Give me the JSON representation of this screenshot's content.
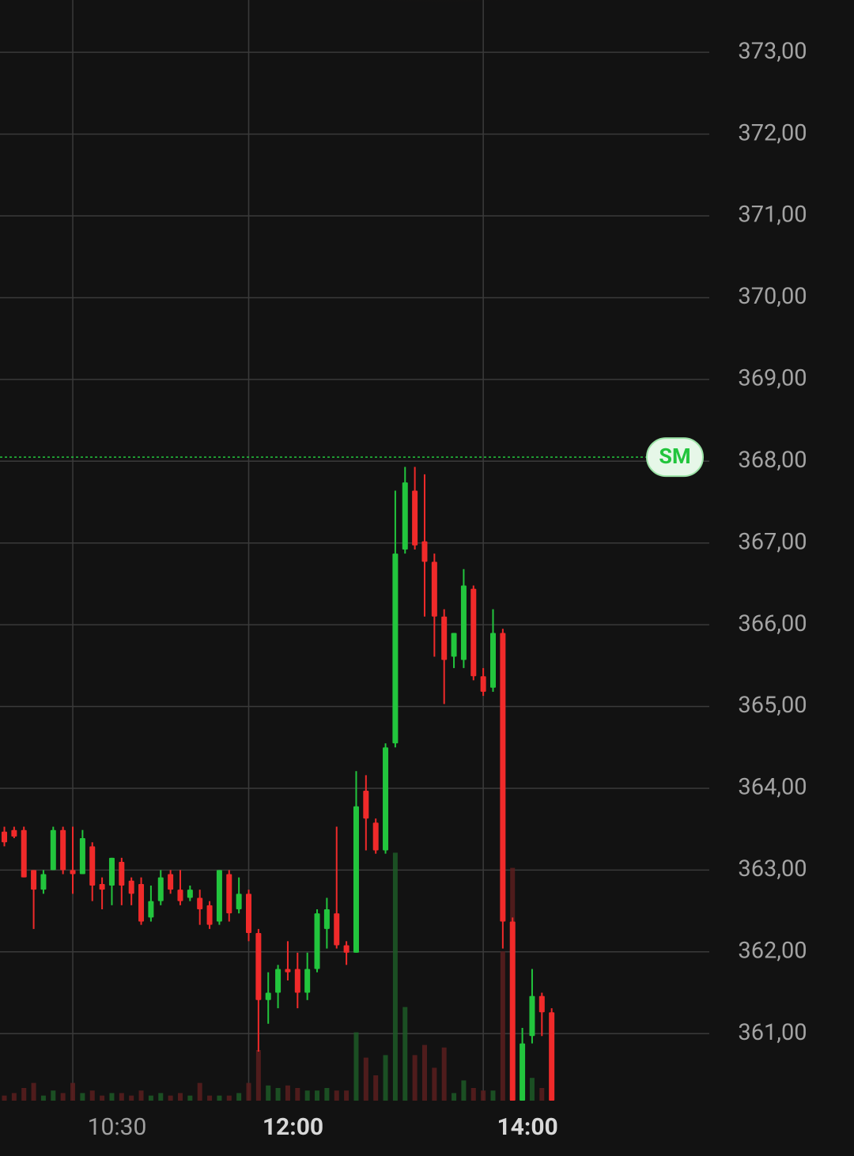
{
  "chart_data": {
    "type": "candlestick",
    "up_color": "#22c53d",
    "down_color": "#f02a2a",
    "ylim": [
      360.18,
      373.64
    ],
    "yticks": [
      {
        "value": 373,
        "label": "373,00"
      },
      {
        "value": 372,
        "label": "372,00"
      },
      {
        "value": 371,
        "label": "371,00"
      },
      {
        "value": 370,
        "label": "370,00"
      },
      {
        "value": 369,
        "label": "369,00"
      },
      {
        "value": 368,
        "label": "368,00"
      },
      {
        "value": 367,
        "label": "367,00"
      },
      {
        "value": 366,
        "label": "366,00"
      },
      {
        "value": 365,
        "label": "365,00"
      },
      {
        "value": 364,
        "label": "364,00"
      },
      {
        "value": 363,
        "label": "363,00"
      },
      {
        "value": 362,
        "label": "362,00"
      },
      {
        "value": 361,
        "label": "361,00"
      }
    ],
    "xticks": [
      {
        "value": 7,
        "label": "10:30",
        "bold": false
      },
      {
        "value": 25,
        "label": "12:00",
        "bold": true
      },
      {
        "value": 49,
        "label": "14:00",
        "bold": true
      }
    ],
    "grid": true,
    "volume_lim": [
      0,
      100
    ],
    "price_line": {
      "value": 368.05,
      "label": "SM",
      "color": "#22c53d"
    },
    "open": [
      363.47,
      363.49,
      363.49,
      363.0,
      362.76,
      363.0,
      363.49,
      363.0,
      362.95,
      363.29,
      362.83,
      362.81,
      363.1,
      362.87,
      362.83,
      362.42,
      362.62,
      362.95,
      362.76,
      362.66,
      362.66,
      362.57,
      362.37,
      362.95,
      362.52,
      362.71,
      362.23,
      361.41,
      361.5,
      361.79,
      361.79,
      361.5,
      361.79,
      362.28,
      362.47,
      362.08,
      361.99,
      363.97,
      363.58,
      363.24,
      364.55,
      366.92,
      367.64,
      367.02,
      366.77,
      366.1,
      365.61,
      365.57,
      366.44,
      365.37,
      365.23,
      365.9,
      362.37,
      360.18,
      360.97,
      361.46,
      361.26
    ],
    "high": [
      363.53,
      363.53,
      363.53,
      363.0,
      363.0,
      363.53,
      363.53,
      363.53,
      363.49,
      363.34,
      362.91,
      363.15,
      363.15,
      362.91,
      362.91,
      362.81,
      363.0,
      363.0,
      363.0,
      362.81,
      362.76,
      362.62,
      363.0,
      363.0,
      362.91,
      362.76,
      362.28,
      361.75,
      361.84,
      362.13,
      361.99,
      361.99,
      362.52,
      362.66,
      363.53,
      362.13,
      364.21,
      364.16,
      363.63,
      364.55,
      367.64,
      367.93,
      367.93,
      367.84,
      366.87,
      366.19,
      365.9,
      366.68,
      366.48,
      365.47,
      366.19,
      365.95,
      362.42,
      361.07,
      361.79,
      361.5,
      361.31
    ],
    "low": [
      363.29,
      363.39,
      362.91,
      362.28,
      362.71,
      363.0,
      362.95,
      362.71,
      362.95,
      362.62,
      362.52,
      362.57,
      362.57,
      362.57,
      362.33,
      362.37,
      362.57,
      362.71,
      362.57,
      362.62,
      362.33,
      362.28,
      362.33,
      362.37,
      362.47,
      362.13,
      360.78,
      361.12,
      361.31,
      361.65,
      361.31,
      361.41,
      361.75,
      362.04,
      362.04,
      361.84,
      361.99,
      363.24,
      363.2,
      363.2,
      364.5,
      366.87,
      366.92,
      366.1,
      365.61,
      365.03,
      365.47,
      365.47,
      365.32,
      365.13,
      365.18,
      362.04,
      360.18,
      360.18,
      360.88,
      360.97,
      360.18
    ],
    "close": [
      363.34,
      363.41,
      362.91,
      362.76,
      362.95,
      363.49,
      363.0,
      362.95,
      363.39,
      362.81,
      362.76,
      363.15,
      362.81,
      362.71,
      362.37,
      362.62,
      362.91,
      362.76,
      362.62,
      362.76,
      362.52,
      362.33,
      363.0,
      362.47,
      362.71,
      362.23,
      361.41,
      361.5,
      361.79,
      361.75,
      361.5,
      361.79,
      362.47,
      362.52,
      362.08,
      361.99,
      363.78,
      363.63,
      363.24,
      364.5,
      366.87,
      367.74,
      366.97,
      366.77,
      366.1,
      365.57,
      365.9,
      366.48,
      365.37,
      365.18,
      365.9,
      362.37,
      360.18,
      360.88,
      361.46,
      361.26,
      360.18
    ],
    "volume": [
      2,
      3,
      5,
      7,
      2,
      4,
      3,
      7,
      3,
      4,
      2,
      3,
      3,
      2,
      4,
      2,
      3,
      2,
      3,
      2,
      7,
      2,
      2,
      2,
      3,
      7,
      20,
      6,
      5,
      6,
      5,
      4,
      4,
      5,
      4,
      4,
      27,
      17,
      10,
      18,
      98,
      37,
      18,
      22,
      13,
      21,
      3,
      8,
      5,
      4,
      4,
      59,
      92,
      9,
      9,
      5,
      9
    ]
  }
}
